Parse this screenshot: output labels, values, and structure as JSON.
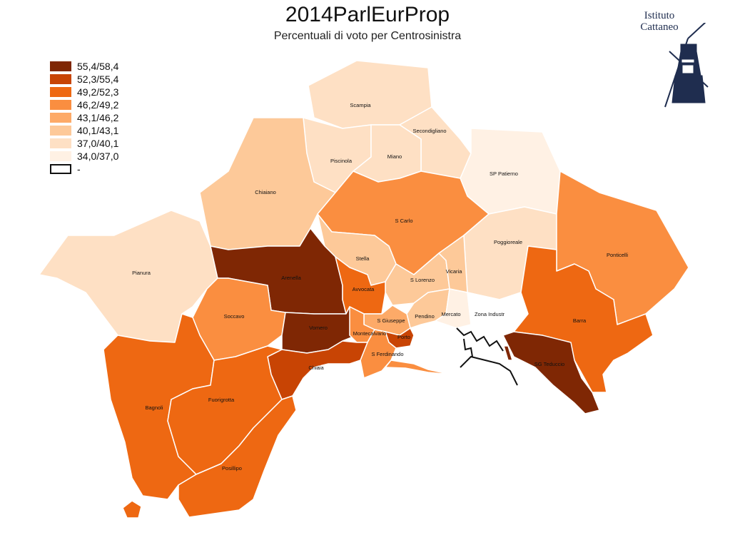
{
  "title": "2014ParlEurProp",
  "subtitle": "Percentuali di voto per Centrosinistra",
  "logo": {
    "line1": "Istituto",
    "line2": "Cattaneo"
  },
  "legend": [
    {
      "label": "55,4/58,4",
      "color": "#7f2704"
    },
    {
      "label": "52,3/55,4",
      "color": "#c84404"
    },
    {
      "label": "49,2/52,3",
      "color": "#ee6812"
    },
    {
      "label": "46,2/49,2",
      "color": "#fa8e40"
    },
    {
      "label": "43,1/46,2",
      "color": "#fdaa68"
    },
    {
      "label": "40,1/43,1",
      "color": "#fdc999"
    },
    {
      "label": "37,0/40,1",
      "color": "#fee0c4"
    },
    {
      "label": "34,0/37,0",
      "color": "#fff1e4"
    },
    {
      "label": "-",
      "color": "#ffffff",
      "nodata": true
    }
  ],
  "districts": [
    {
      "name": "Scampia",
      "cls": 6
    },
    {
      "name": "Secondigliano",
      "cls": 6
    },
    {
      "name": "Piscinola",
      "cls": 6
    },
    {
      "name": "Miano",
      "cls": 6
    },
    {
      "name": "SP Patierno",
      "cls": 7
    },
    {
      "name": "Chiaiano",
      "cls": 5
    },
    {
      "name": "S Carlo",
      "cls": 3
    },
    {
      "name": "Poggioreale",
      "cls": 6
    },
    {
      "name": "Ponticelli",
      "cls": 3
    },
    {
      "name": "Pianura",
      "cls": 6
    },
    {
      "name": "Stella",
      "cls": 5
    },
    {
      "name": "S Lorenzo",
      "cls": 5
    },
    {
      "name": "Vicaria",
      "cls": 5
    },
    {
      "name": "Arenella",
      "cls": 0
    },
    {
      "name": "Avvocata",
      "cls": 2
    },
    {
      "name": "Soccavo",
      "cls": 3
    },
    {
      "name": "Pendino",
      "cls": 5
    },
    {
      "name": "Mercato",
      "cls": 7
    },
    {
      "name": "Zona Industr",
      "cls": 8
    },
    {
      "name": "S Giuseppe",
      "cls": 4
    },
    {
      "name": "Vomero",
      "cls": 0
    },
    {
      "name": "Montecalvario",
      "cls": 3
    },
    {
      "name": "Porto",
      "cls": 1
    },
    {
      "name": "Barra",
      "cls": 2
    },
    {
      "name": "S Ferdinando",
      "cls": 3
    },
    {
      "name": "SG Teduccio",
      "cls": 0
    },
    {
      "name": "Chiaia",
      "cls": 1
    },
    {
      "name": "Bagnoli",
      "cls": 2
    },
    {
      "name": "Fuorigrotta",
      "cls": 2
    },
    {
      "name": "Posillipo",
      "cls": 2
    }
  ]
}
